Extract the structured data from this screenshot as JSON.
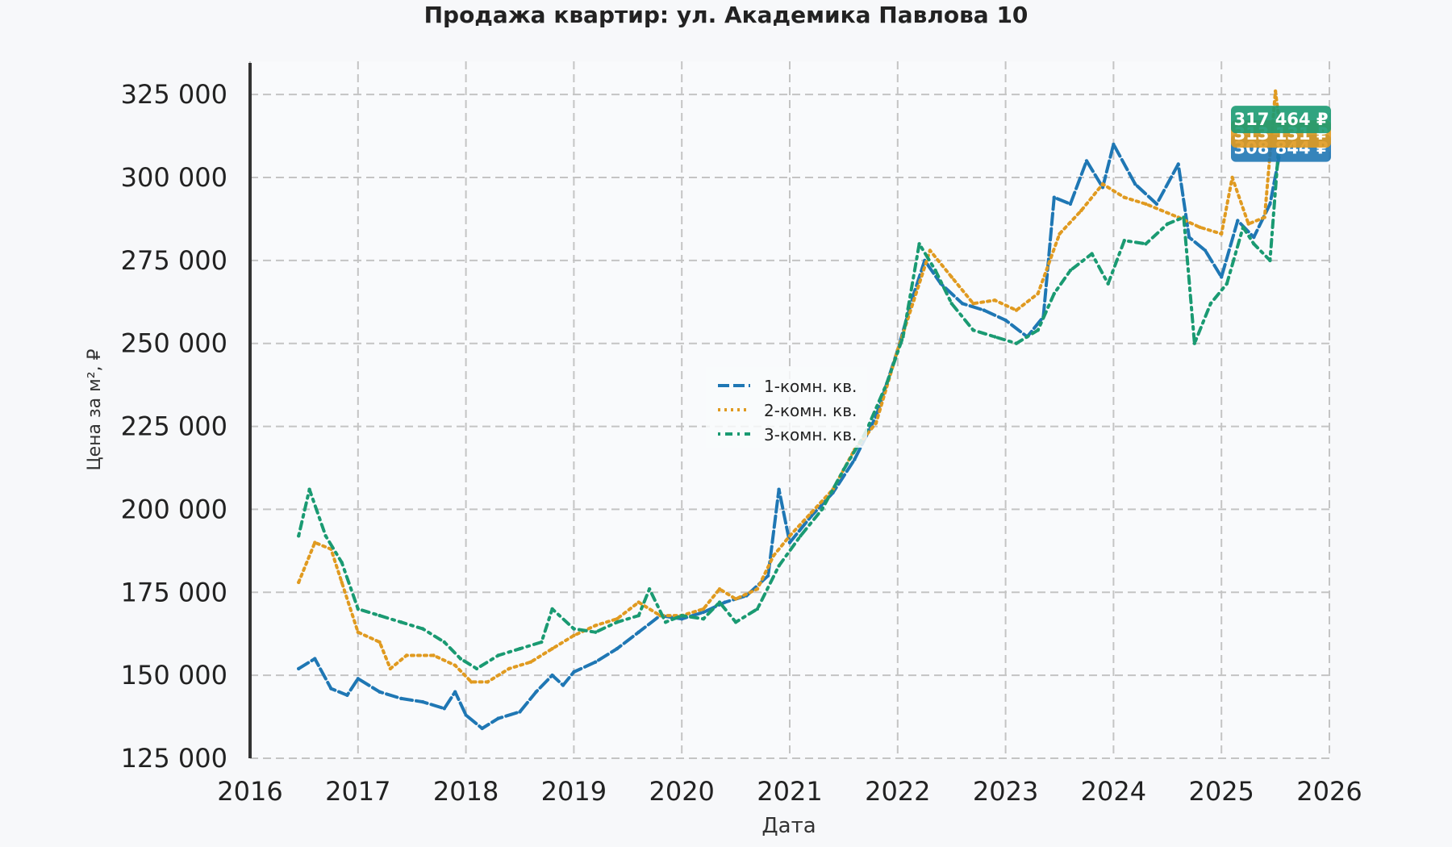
{
  "chart_data": {
    "type": "line",
    "title": "Продажа квартир: ул. Академика Павлова 10",
    "xlabel": "Дата",
    "ylabel": "Цена за м², ₽",
    "xlim": [
      2016,
      2026
    ],
    "ylim": [
      125000,
      335000
    ],
    "x_ticks": [
      "2016",
      "2017",
      "2018",
      "2019",
      "2020",
      "2021",
      "2022",
      "2023",
      "2024",
      "2025",
      "2026"
    ],
    "y_ticks": [
      "125 000",
      "150 000",
      "175 000",
      "200 000",
      "225 000",
      "250 000",
      "275 000",
      "300 000",
      "325 000"
    ],
    "grid": true,
    "legend_position": "center",
    "series": [
      {
        "name": "1-комн. кв.",
        "color": "#1f77b4",
        "dash": "dashed",
        "final_label": "308 844 ₽",
        "points": [
          [
            2016.45,
            152000
          ],
          [
            2016.6,
            155000
          ],
          [
            2016.75,
            146000
          ],
          [
            2016.9,
            144000
          ],
          [
            2017.0,
            149000
          ],
          [
            2017.2,
            145000
          ],
          [
            2017.4,
            143000
          ],
          [
            2017.6,
            142000
          ],
          [
            2017.8,
            140000
          ],
          [
            2017.9,
            145000
          ],
          [
            2018.0,
            138000
          ],
          [
            2018.15,
            134000
          ],
          [
            2018.3,
            137000
          ],
          [
            2018.5,
            139000
          ],
          [
            2018.65,
            145000
          ],
          [
            2018.8,
            150000
          ],
          [
            2018.9,
            147000
          ],
          [
            2019.0,
            151000
          ],
          [
            2019.2,
            154000
          ],
          [
            2019.4,
            158000
          ],
          [
            2019.6,
            163000
          ],
          [
            2019.8,
            168000
          ],
          [
            2020.0,
            167000
          ],
          [
            2020.2,
            169000
          ],
          [
            2020.4,
            172000
          ],
          [
            2020.6,
            174000
          ],
          [
            2020.8,
            180000
          ],
          [
            2020.9,
            206000
          ],
          [
            2021.0,
            190000
          ],
          [
            2021.2,
            198000
          ],
          [
            2021.4,
            205000
          ],
          [
            2021.6,
            215000
          ],
          [
            2021.8,
            228000
          ],
          [
            2022.0,
            248000
          ],
          [
            2022.15,
            265000
          ],
          [
            2022.25,
            275000
          ],
          [
            2022.4,
            268000
          ],
          [
            2022.6,
            262000
          ],
          [
            2022.8,
            260000
          ],
          [
            2023.0,
            257000
          ],
          [
            2023.2,
            252000
          ],
          [
            2023.35,
            258000
          ],
          [
            2023.45,
            294000
          ],
          [
            2023.6,
            292000
          ],
          [
            2023.75,
            305000
          ],
          [
            2023.9,
            297000
          ],
          [
            2024.0,
            310000
          ],
          [
            2024.2,
            298000
          ],
          [
            2024.4,
            292000
          ],
          [
            2024.6,
            304000
          ],
          [
            2024.7,
            282000
          ],
          [
            2024.85,
            278000
          ],
          [
            2025.0,
            270000
          ],
          [
            2025.15,
            287000
          ],
          [
            2025.3,
            282000
          ],
          [
            2025.45,
            292000
          ],
          [
            2025.55,
            308844
          ]
        ]
      },
      {
        "name": "2-комн. кв.",
        "color": "#e09a20",
        "dash": "dotted",
        "final_label": "313 131 ₽",
        "points": [
          [
            2016.45,
            178000
          ],
          [
            2016.6,
            190000
          ],
          [
            2016.75,
            188000
          ],
          [
            2016.85,
            178000
          ],
          [
            2017.0,
            163000
          ],
          [
            2017.2,
            160000
          ],
          [
            2017.3,
            152000
          ],
          [
            2017.45,
            156000
          ],
          [
            2017.7,
            156000
          ],
          [
            2017.9,
            153000
          ],
          [
            2018.05,
            148000
          ],
          [
            2018.2,
            148000
          ],
          [
            2018.4,
            152000
          ],
          [
            2018.6,
            154000
          ],
          [
            2018.8,
            158000
          ],
          [
            2019.0,
            162000
          ],
          [
            2019.2,
            165000
          ],
          [
            2019.4,
            167000
          ],
          [
            2019.6,
            172000
          ],
          [
            2019.8,
            168000
          ],
          [
            2020.0,
            168000
          ],
          [
            2020.2,
            170000
          ],
          [
            2020.35,
            176000
          ],
          [
            2020.5,
            173000
          ],
          [
            2020.7,
            176000
          ],
          [
            2020.85,
            186000
          ],
          [
            2021.0,
            192000
          ],
          [
            2021.2,
            199000
          ],
          [
            2021.4,
            206000
          ],
          [
            2021.6,
            218000
          ],
          [
            2021.8,
            226000
          ],
          [
            2022.0,
            248000
          ],
          [
            2022.15,
            263000
          ],
          [
            2022.3,
            278000
          ],
          [
            2022.5,
            270000
          ],
          [
            2022.7,
            262000
          ],
          [
            2022.9,
            263000
          ],
          [
            2023.1,
            260000
          ],
          [
            2023.3,
            265000
          ],
          [
            2023.5,
            283000
          ],
          [
            2023.7,
            290000
          ],
          [
            2023.9,
            298000
          ],
          [
            2024.1,
            294000
          ],
          [
            2024.3,
            292000
          ],
          [
            2024.6,
            288000
          ],
          [
            2024.8,
            285000
          ],
          [
            2025.0,
            283000
          ],
          [
            2025.1,
            300000
          ],
          [
            2025.25,
            286000
          ],
          [
            2025.4,
            288000
          ],
          [
            2025.5,
            326000
          ],
          [
            2025.55,
            313131
          ]
        ]
      },
      {
        "name": "3-комн. кв.",
        "color": "#1a9a72",
        "dash": "dashdot",
        "final_label": "317 464 ₽",
        "points": [
          [
            2016.45,
            192000
          ],
          [
            2016.55,
            206000
          ],
          [
            2016.7,
            192000
          ],
          [
            2016.85,
            184000
          ],
          [
            2017.0,
            170000
          ],
          [
            2017.2,
            168000
          ],
          [
            2017.4,
            166000
          ],
          [
            2017.6,
            164000
          ],
          [
            2017.8,
            160000
          ],
          [
            2017.95,
            155000
          ],
          [
            2018.1,
            152000
          ],
          [
            2018.3,
            156000
          ],
          [
            2018.5,
            158000
          ],
          [
            2018.7,
            160000
          ],
          [
            2018.8,
            170000
          ],
          [
            2019.0,
            164000
          ],
          [
            2019.2,
            163000
          ],
          [
            2019.4,
            166000
          ],
          [
            2019.6,
            168000
          ],
          [
            2019.7,
            176000
          ],
          [
            2019.85,
            166000
          ],
          [
            2020.0,
            168000
          ],
          [
            2020.2,
            167000
          ],
          [
            2020.35,
            172000
          ],
          [
            2020.5,
            166000
          ],
          [
            2020.7,
            170000
          ],
          [
            2020.9,
            183000
          ],
          [
            2021.1,
            192000
          ],
          [
            2021.3,
            200000
          ],
          [
            2021.5,
            212000
          ],
          [
            2021.7,
            223000
          ],
          [
            2021.9,
            238000
          ],
          [
            2022.05,
            252000
          ],
          [
            2022.2,
            280000
          ],
          [
            2022.35,
            272000
          ],
          [
            2022.5,
            262000
          ],
          [
            2022.7,
            254000
          ],
          [
            2022.9,
            252000
          ],
          [
            2023.1,
            250000
          ],
          [
            2023.3,
            254000
          ],
          [
            2023.45,
            265000
          ],
          [
            2023.6,
            272000
          ],
          [
            2023.8,
            277000
          ],
          [
            2023.95,
            268000
          ],
          [
            2024.1,
            281000
          ],
          [
            2024.3,
            280000
          ],
          [
            2024.5,
            286000
          ],
          [
            2024.65,
            288000
          ],
          [
            2024.75,
            250000
          ],
          [
            2024.9,
            262000
          ],
          [
            2025.05,
            268000
          ],
          [
            2025.2,
            285000
          ],
          [
            2025.3,
            280000
          ],
          [
            2025.45,
            275000
          ],
          [
            2025.55,
            317464
          ]
        ]
      }
    ]
  }
}
